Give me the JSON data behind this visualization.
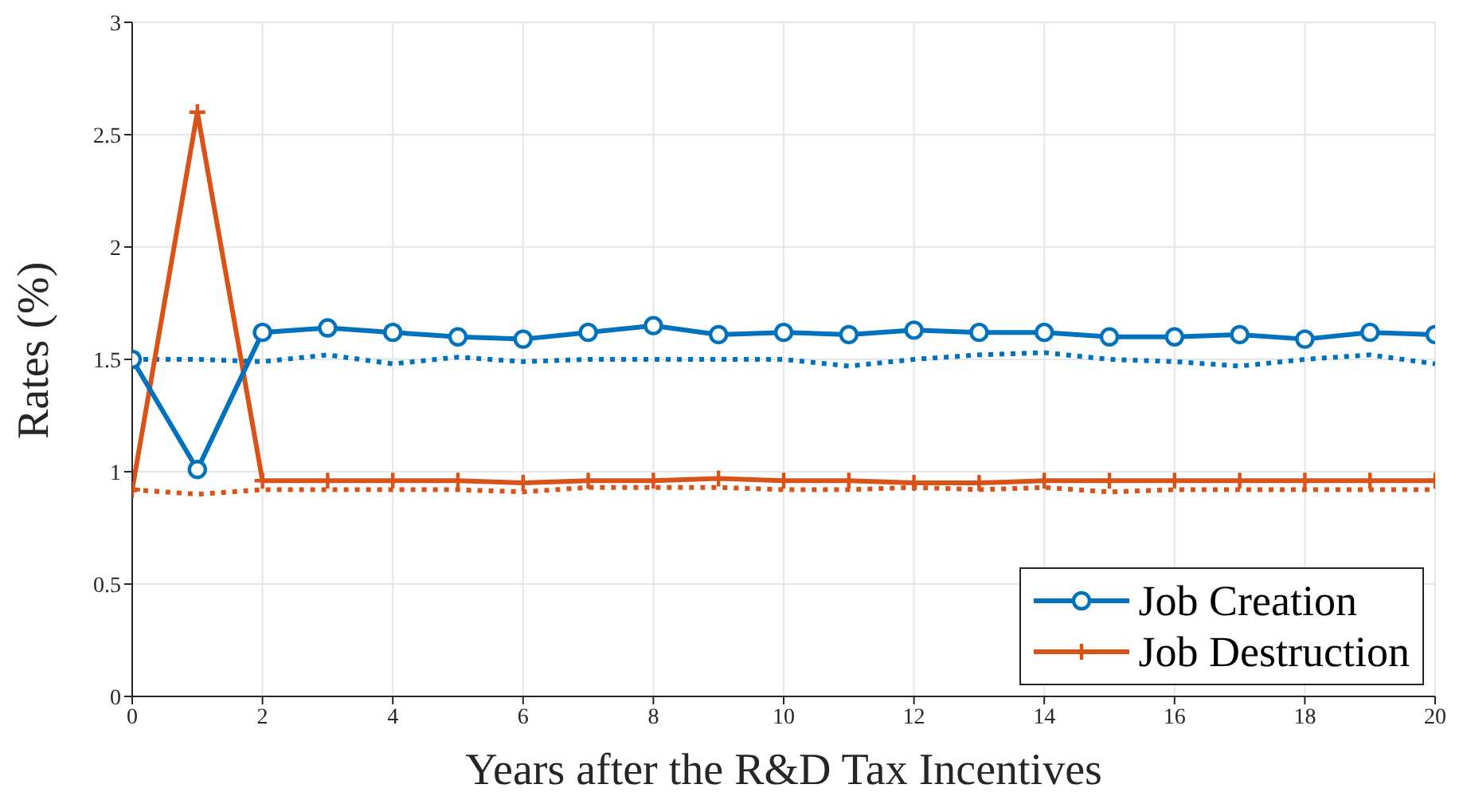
{
  "chart_data": {
    "type": "line",
    "xlabel": "Years after the R&D Tax Incentives",
    "ylabel": "Rates (%)",
    "x": [
      0,
      1,
      2,
      3,
      4,
      5,
      6,
      7,
      8,
      9,
      10,
      11,
      12,
      13,
      14,
      15,
      16,
      17,
      18,
      19,
      20
    ],
    "series": [
      {
        "name": "Job Creation",
        "color": "#0072bd",
        "marker": "circle",
        "line_style": "solid",
        "values": [
          1.5,
          1.01,
          1.62,
          1.64,
          1.62,
          1.6,
          1.59,
          1.62,
          1.65,
          1.61,
          1.62,
          1.61,
          1.63,
          1.62,
          1.62,
          1.6,
          1.6,
          1.61,
          1.59,
          1.62,
          1.61
        ]
      },
      {
        "name": "Job Destruction",
        "color": "#d95319",
        "marker": "cross",
        "line_style": "solid",
        "values": [
          0.92,
          2.6,
          0.96,
          0.96,
          0.96,
          0.96,
          0.95,
          0.96,
          0.96,
          0.97,
          0.96,
          0.96,
          0.95,
          0.95,
          0.96,
          0.96,
          0.96,
          0.96,
          0.96,
          0.96,
          0.96
        ]
      },
      {
        "color": "#0072bd",
        "marker": "none",
        "line_style": "dotted",
        "values": [
          1.5,
          1.5,
          1.49,
          1.52,
          1.48,
          1.51,
          1.49,
          1.5,
          1.5,
          1.5,
          1.5,
          1.47,
          1.5,
          1.52,
          1.53,
          1.5,
          1.49,
          1.47,
          1.5,
          1.52,
          1.48
        ]
      },
      {
        "color": "#d95319",
        "marker": "none",
        "line_style": "dotted",
        "values": [
          0.92,
          0.9,
          0.92,
          0.92,
          0.92,
          0.92,
          0.91,
          0.93,
          0.93,
          0.93,
          0.92,
          0.92,
          0.93,
          0.92,
          0.93,
          0.91,
          0.92,
          0.92,
          0.92,
          0.92,
          0.92
        ]
      }
    ],
    "xlim": [
      0,
      20
    ],
    "xticks": [
      0,
      2,
      4,
      6,
      8,
      10,
      12,
      14,
      16,
      18,
      20
    ],
    "ylim": [
      0,
      3
    ],
    "yticks": [
      0,
      0.5,
      1,
      1.5,
      2,
      2.5,
      3
    ],
    "grid": true,
    "legend": "bottom right"
  }
}
